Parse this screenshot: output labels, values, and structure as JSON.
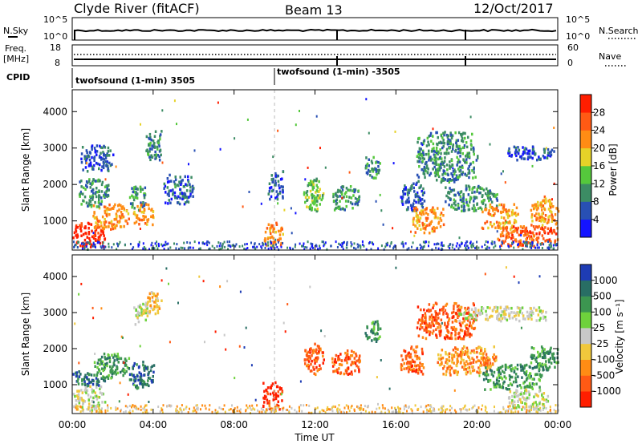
{
  "header": {
    "radar_label": "Clyde River (fitACF)",
    "beam_label": "Beam 13",
    "date_label": "12/Oct/2017"
  },
  "noise_panel": {
    "left_label": "N.Sky",
    "right_label": "N.Search",
    "left_ticks": [
      "10^5",
      "10^0"
    ],
    "right_ticks": [
      "10^5",
      "10^0"
    ]
  },
  "freq_panel": {
    "left_label": "Freq.",
    "left_unit": "[MHz]",
    "right_label": "Nave",
    "left_ticks": [
      "18",
      "8"
    ],
    "right_ticks": [
      "60",
      "0"
    ]
  },
  "cpid": {
    "label": "CPID",
    "segments": [
      {
        "text": "twofsound (1-min) 3505",
        "start_hour": 0.0
      },
      {
        "text": "twofsound (1-min) -3505",
        "start_hour": 10.0
      }
    ]
  },
  "time_axis": {
    "label": "Time UT",
    "ticks": [
      "00:00",
      "04:00",
      "08:00",
      "12:00",
      "16:00",
      "20:00",
      "00:00"
    ],
    "range_hours": [
      0,
      24
    ]
  },
  "chart_data": [
    {
      "type": "heatmap",
      "name": "power",
      "ylabel": "Slant Range [km]",
      "yticks": [
        "1000",
        "2000",
        "3000",
        "4000"
      ],
      "ylim": [
        200,
        4600
      ],
      "colorbar_label": "Power [dB]",
      "colorbar_ticks": [
        "4",
        "8",
        "12",
        "16",
        "20",
        "24",
        "28"
      ],
      "colorbar_colors": [
        "#1414ff",
        "#2850b4",
        "#3c8c64",
        "#55c83c",
        "#e6d228",
        "#ff8c14",
        "#ff5a14",
        "#ff1e00"
      ],
      "blobs": [
        {
          "t": [
            0.0,
            1.6
          ],
          "r": [
            300,
            1000
          ],
          "level": 7
        },
        {
          "t": [
            1.0,
            2.8
          ],
          "r": [
            800,
            1500
          ],
          "level": 5
        },
        {
          "t": [
            0.3,
            1.8
          ],
          "r": [
            1400,
            2200
          ],
          "level": 2
        },
        {
          "t": [
            0.4,
            2.0
          ],
          "r": [
            2400,
            3100
          ],
          "level": 1
        },
        {
          "t": [
            2.8,
            3.6
          ],
          "r": [
            1300,
            2000
          ],
          "level": 2
        },
        {
          "t": [
            3.0,
            4.0
          ],
          "r": [
            900,
            1500
          ],
          "level": 5
        },
        {
          "t": [
            3.6,
            4.4
          ],
          "r": [
            2700,
            3500
          ],
          "level": 2
        },
        {
          "t": [
            4.5,
            6.0
          ],
          "r": [
            1500,
            2300
          ],
          "level": 1
        },
        {
          "t": [
            9.4,
            10.4
          ],
          "r": [
            300,
            1000
          ],
          "level": 5
        },
        {
          "t": [
            9.6,
            10.4
          ],
          "r": [
            1600,
            2400
          ],
          "level": 1
        },
        {
          "t": [
            11.4,
            12.4
          ],
          "r": [
            1300,
            2200
          ],
          "level": 3
        },
        {
          "t": [
            12.8,
            14.2
          ],
          "r": [
            1300,
            2000
          ],
          "level": 2
        },
        {
          "t": [
            14.4,
            15.2
          ],
          "r": [
            2200,
            2800
          ],
          "level": 2
        },
        {
          "t": [
            16.2,
            17.4
          ],
          "r": [
            1300,
            2100
          ],
          "level": 1
        },
        {
          "t": [
            16.8,
            18.4
          ],
          "r": [
            700,
            1400
          ],
          "level": 5
        },
        {
          "t": [
            17.0,
            20.0
          ],
          "r": [
            2100,
            3500
          ],
          "level": 2
        },
        {
          "t": [
            18.4,
            21.0
          ],
          "r": [
            1300,
            2000
          ],
          "level": 2
        },
        {
          "t": [
            20.2,
            22.0
          ],
          "r": [
            800,
            1500
          ],
          "level": 5
        },
        {
          "t": [
            21.0,
            24.0
          ],
          "r": [
            300,
            900
          ],
          "level": 6
        },
        {
          "t": [
            22.6,
            24.0
          ],
          "r": [
            900,
            1700
          ],
          "level": 5
        },
        {
          "t": [
            21.5,
            23.8
          ],
          "r": [
            2700,
            3100
          ],
          "level": 1
        }
      ]
    },
    {
      "type": "heatmap",
      "name": "velocity",
      "ylabel": "Slant Range [km]",
      "yticks": [
        "1000",
        "2000",
        "3000",
        "4000"
      ],
      "ylim": [
        200,
        4600
      ],
      "colorbar_label": "Velocity [m s⁻¹]",
      "colorbar_ticks": [
        "1000",
        "500",
        "100",
        "25",
        "-25",
        "-100",
        "-500",
        "-1000"
      ],
      "colorbar_colors": [
        "#1e3cb4",
        "#286e64",
        "#3c9650",
        "#6ed23c",
        "#c8c8c8",
        "#f0c83c",
        "#ff8c14",
        "#ff5a14",
        "#ff1e00"
      ],
      "blobs": [
        {
          "t": [
            0.0,
            1.6
          ],
          "r": [
            300,
            1000
          ],
          "level": 4
        },
        {
          "t": [
            0.0,
            1.6
          ],
          "r": [
            1000,
            1400
          ],
          "level": 1
        },
        {
          "t": [
            1.0,
            2.8
          ],
          "r": [
            1200,
            1900
          ],
          "level": 2
        },
        {
          "t": [
            2.8,
            4.0
          ],
          "r": [
            900,
            1700
          ],
          "level": 1
        },
        {
          "t": [
            3.0,
            3.8
          ],
          "r": [
            2700,
            3300
          ],
          "level": 4
        },
        {
          "t": [
            3.6,
            4.4
          ],
          "r": [
            3000,
            3600
          ],
          "level": 5
        },
        {
          "t": [
            9.4,
            10.4
          ],
          "r": [
            300,
            1100
          ],
          "level": 8
        },
        {
          "t": [
            11.4,
            12.4
          ],
          "r": [
            1300,
            2200
          ],
          "level": 7
        },
        {
          "t": [
            12.8,
            14.2
          ],
          "r": [
            1300,
            2000
          ],
          "level": 7
        },
        {
          "t": [
            14.4,
            15.2
          ],
          "r": [
            2200,
            2800
          ],
          "level": 2
        },
        {
          "t": [
            16.2,
            17.4
          ],
          "r": [
            1300,
            2100
          ],
          "level": 7
        },
        {
          "t": [
            17.0,
            20.0
          ],
          "r": [
            2300,
            3300
          ],
          "level": 7
        },
        {
          "t": [
            18.0,
            21.0
          ],
          "r": [
            1300,
            2100
          ],
          "level": 6
        },
        {
          "t": [
            19.0,
            23.4
          ],
          "r": [
            2800,
            3200
          ],
          "level": 4
        },
        {
          "t": [
            20.2,
            23.2
          ],
          "r": [
            900,
            1600
          ],
          "level": 2
        },
        {
          "t": [
            21.5,
            23.5
          ],
          "r": [
            300,
            900
          ],
          "level": 4
        },
        {
          "t": [
            22.6,
            24.0
          ],
          "r": [
            1400,
            2100
          ],
          "level": 2
        }
      ]
    }
  ]
}
